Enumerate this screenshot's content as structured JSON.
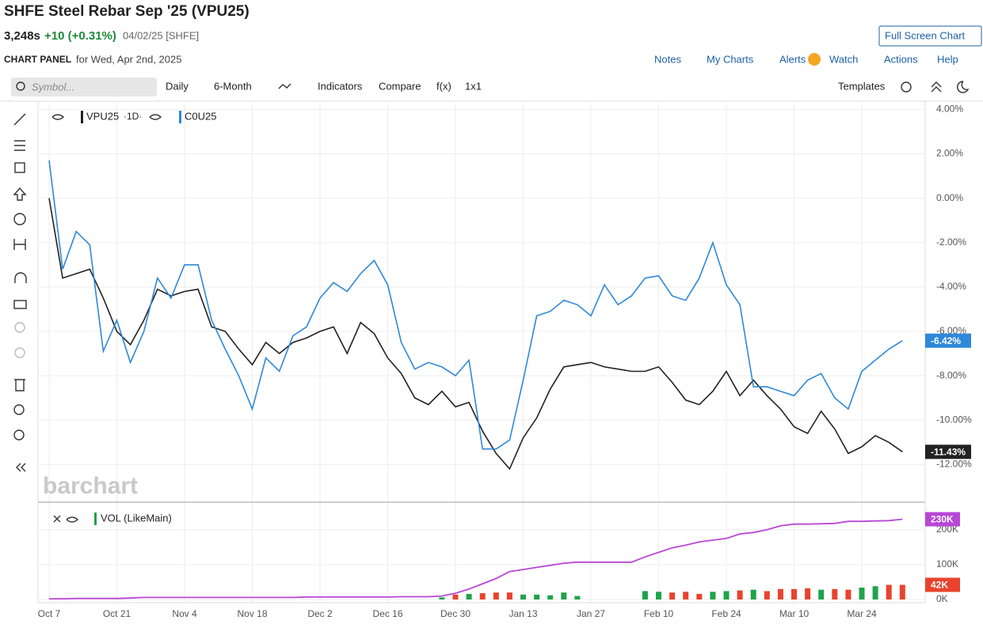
{
  "header": {
    "title": "SHFE Steel Rebar Sep '25 (VPU25)",
    "price": "3,248s",
    "change": "+10 (+0.31%)",
    "date": "04/02/25 [SHFE]",
    "fullscreen": "Full Screen Chart"
  },
  "panel": {
    "label": "CHART PANEL",
    "date": "for Wed, Apr 2nd, 2025",
    "menu": [
      "Notes",
      "My Charts",
      "Alerts",
      "Watch",
      "Actions",
      "Help"
    ]
  },
  "toolbar": {
    "search": "Symbol...",
    "items": [
      "Daily",
      "6-Month",
      "Indicators",
      "Compare",
      "f(x)",
      "1x1"
    ],
    "templates": "Templates"
  },
  "watermark": "barchart",
  "chart_data": [
    {
      "type": "line",
      "interval": "·1D·",
      "categories": [
        "Oct 7",
        null,
        null,
        null,
        null,
        "Oct 21",
        null,
        null,
        null,
        null,
        "Nov 4",
        null,
        null,
        null,
        null,
        "Nov 18",
        null,
        null,
        null,
        null,
        "Dec 2",
        null,
        null,
        null,
        null,
        "Dec 16",
        null,
        null,
        null,
        null,
        "Dec 30",
        null,
        null,
        null,
        null,
        "Jan 13",
        null,
        null,
        null,
        null,
        "Jan 27",
        null,
        null,
        null,
        null,
        "Feb 10",
        null,
        null,
        null,
        null,
        "Feb 24",
        null,
        null,
        null,
        null,
        "Mar 10",
        null,
        null,
        null,
        null,
        "Mar 24",
        null,
        null,
        null
      ],
      "ylim": [
        -13.7,
        4.3
      ],
      "yticks": [
        {
          "value": 4,
          "label": "4.00%"
        },
        {
          "value": 2,
          "label": "2.00%"
        },
        {
          "value": 0,
          "label": "0.00%"
        },
        {
          "value": -2,
          "label": "-2.00%"
        },
        {
          "value": -4,
          "label": "-4.00%"
        },
        {
          "value": -6,
          "label": "-6.00%"
        },
        {
          "value": -8,
          "label": "-8.00%"
        },
        {
          "value": -10,
          "label": "-10.00%"
        },
        {
          "value": -12,
          "label": "-12.00%"
        }
      ],
      "grid": true,
      "series": [
        {
          "name": "VPU25",
          "color": "#222222",
          "values": [
            0,
            -3.6,
            -3.4,
            -3.2,
            -4.5,
            -6.0,
            -6.6,
            -5.5,
            -4.1,
            -4.4,
            -4.2,
            -4.1,
            -5.8,
            -6.0,
            -6.8,
            -7.5,
            -6.5,
            -7.0,
            -6.5,
            -6.3,
            -6.0,
            -5.8,
            -7.0,
            -5.6,
            -6.1,
            -7.2,
            -7.9,
            -9.0,
            -9.3,
            -8.7,
            -9.4,
            -9.2,
            -10.5,
            -11.5,
            -12.2,
            -10.8,
            -9.9,
            -8.6,
            -7.6,
            -7.5,
            -7.4,
            -7.6,
            -7.7,
            -7.8,
            -7.8,
            -7.6,
            -8.3,
            -9.1,
            -9.3,
            -8.7,
            -7.8,
            -8.9,
            -8.2,
            -8.9,
            -9.5,
            -10.3,
            -10.6,
            -9.6,
            -10.4,
            -11.5,
            -11.2,
            -10.7,
            -11.0,
            -11.43
          ],
          "value_labels": [
            null,
            null,
            null,
            null,
            null,
            null,
            null,
            null,
            null,
            null,
            null,
            null,
            null,
            null,
            null,
            null,
            null,
            null,
            null,
            null,
            null,
            null,
            null,
            null,
            null,
            null,
            null,
            null,
            null,
            null,
            null,
            null,
            null,
            null,
            null,
            null,
            null,
            null,
            null,
            null,
            null,
            null,
            null,
            null,
            null,
            null,
            null,
            null,
            null,
            null,
            null,
            null,
            null,
            null,
            null,
            null,
            null,
            null,
            null,
            null,
            null,
            null,
            null,
            "-11.43%"
          ]
        },
        {
          "name": "C0U25",
          "color": "#2f88d8",
          "values": [
            1.7,
            -3.2,
            -1.5,
            -2.1,
            -6.9,
            -5.5,
            -7.4,
            -6.0,
            -3.6,
            -4.5,
            -3.0,
            -3.0,
            -5.5,
            -6.8,
            -8.0,
            -9.5,
            -7.2,
            -7.8,
            -6.2,
            -5.8,
            -4.5,
            -3.8,
            -4.2,
            -3.4,
            -2.8,
            -3.9,
            -6.5,
            -7.7,
            -7.4,
            -7.6,
            -8.0,
            -7.3,
            -11.3,
            -11.3,
            -10.9,
            -8.2,
            -5.3,
            -5.1,
            -4.6,
            -4.8,
            -5.3,
            -3.9,
            -4.8,
            -4.4,
            -3.6,
            -3.5,
            -4.4,
            -4.6,
            -3.6,
            -2.0,
            -3.9,
            -4.8,
            -8.5,
            -8.5,
            -8.7,
            -8.9,
            -8.2,
            -7.9,
            -9.0,
            -9.5,
            -7.8,
            -7.3,
            -6.8,
            -6.42
          ],
          "value_labels": [
            null,
            null,
            null,
            null,
            null,
            null,
            null,
            null,
            null,
            null,
            null,
            null,
            null,
            null,
            null,
            null,
            null,
            null,
            null,
            null,
            null,
            null,
            null,
            null,
            null,
            null,
            null,
            null,
            null,
            null,
            null,
            null,
            null,
            null,
            null,
            null,
            null,
            null,
            null,
            null,
            null,
            null,
            null,
            null,
            null,
            null,
            null,
            null,
            null,
            null,
            null,
            null,
            null,
            null,
            null,
            null,
            null,
            null,
            null,
            null,
            null,
            null,
            null,
            "-6.42%"
          ]
        }
      ]
    },
    {
      "type": "volume",
      "ylim": [
        0,
        272
      ],
      "yticks": [
        {
          "value": 0,
          "label": "0K"
        },
        {
          "value": 100,
          "label": "100K"
        },
        {
          "value": 200,
          "label": "200K"
        }
      ],
      "series": [
        {
          "name": "VOL (LikeMain)",
          "kind": "bar",
          "up_color": "#1fa34a",
          "down_color": "#e8432d",
          "values": [
            null,
            null,
            null,
            null,
            null,
            null,
            null,
            null,
            null,
            null,
            null,
            null,
            null,
            null,
            null,
            null,
            null,
            null,
            null,
            null,
            null,
            null,
            null,
            null,
            null,
            null,
            null,
            null,
            null,
            6,
            14,
            16,
            18,
            20,
            20,
            14,
            14,
            12,
            20,
            10,
            null,
            null,
            null,
            null,
            24,
            22,
            20,
            22,
            16,
            22,
            24,
            26,
            28,
            24,
            30,
            30,
            32,
            28,
            30,
            28,
            34,
            38,
            42,
            42
          ],
          "value_labels": [
            null,
            null,
            null,
            null,
            null,
            null,
            null,
            null,
            null,
            null,
            null,
            null,
            null,
            null,
            null,
            null,
            null,
            null,
            null,
            null,
            null,
            null,
            null,
            null,
            null,
            null,
            null,
            null,
            null,
            null,
            null,
            null,
            null,
            null,
            null,
            null,
            null,
            null,
            null,
            null,
            null,
            null,
            null,
            null,
            null,
            null,
            null,
            null,
            null,
            null,
            null,
            null,
            null,
            null,
            null,
            null,
            null,
            null,
            null,
            null,
            null,
            null,
            null,
            "42K"
          ]
        },
        {
          "kind": "line",
          "color": "#b847d6",
          "values": [
            2,
            2,
            3,
            3,
            3,
            3,
            4,
            6,
            6,
            6,
            6,
            6,
            6,
            6,
            6,
            6,
            6,
            6,
            6,
            7,
            7,
            7,
            7,
            7,
            7,
            7,
            8,
            8,
            8,
            10,
            18,
            30,
            45,
            60,
            80,
            86,
            92,
            98,
            104,
            107,
            107,
            107,
            107,
            107,
            122,
            135,
            148,
            156,
            165,
            170,
            175,
            188,
            192,
            200,
            211,
            216,
            216,
            217,
            218,
            224,
            224,
            225,
            226,
            230
          ],
          "value_labels": [
            null,
            null,
            null,
            null,
            null,
            null,
            null,
            null,
            null,
            null,
            null,
            null,
            null,
            null,
            null,
            null,
            null,
            null,
            null,
            null,
            null,
            null,
            null,
            null,
            null,
            null,
            null,
            null,
            null,
            null,
            null,
            null,
            null,
            null,
            null,
            null,
            null,
            null,
            null,
            null,
            null,
            null,
            null,
            null,
            null,
            null,
            null,
            null,
            null,
            null,
            null,
            null,
            null,
            null,
            null,
            null,
            null,
            null,
            null,
            null,
            null,
            null,
            null,
            "230K"
          ]
        }
      ]
    }
  ]
}
